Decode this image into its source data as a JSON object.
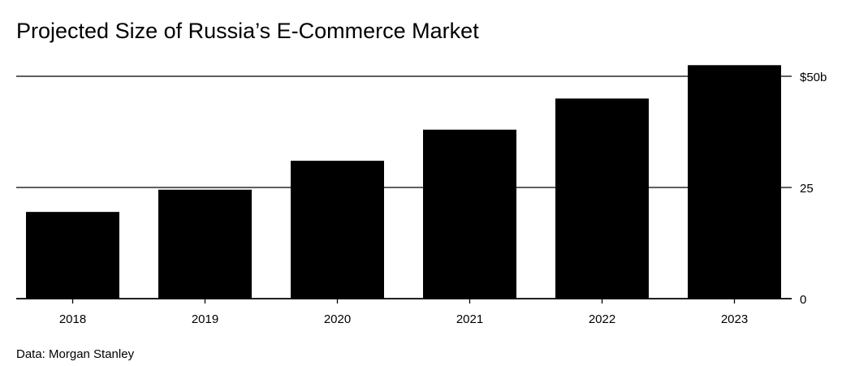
{
  "chart_data": {
    "type": "bar",
    "title": "Projected Size of Russia’s E-Commerce Market",
    "source": "Data: Morgan Stanley",
    "categories": [
      "2018",
      "2019",
      "2020",
      "2021",
      "2022",
      "2023"
    ],
    "values": [
      19.5,
      24.5,
      31,
      38,
      45,
      52.5
    ],
    "ylim": [
      0,
      50
    ],
    "y_ticks": [
      {
        "value": 50,
        "label": "$50b"
      },
      {
        "value": 25,
        "label": "25"
      },
      {
        "value": 0,
        "label": "0"
      }
    ],
    "y_axis_side": "right",
    "grid": true,
    "bar_color": "#000000",
    "grid_color": "#000000"
  }
}
